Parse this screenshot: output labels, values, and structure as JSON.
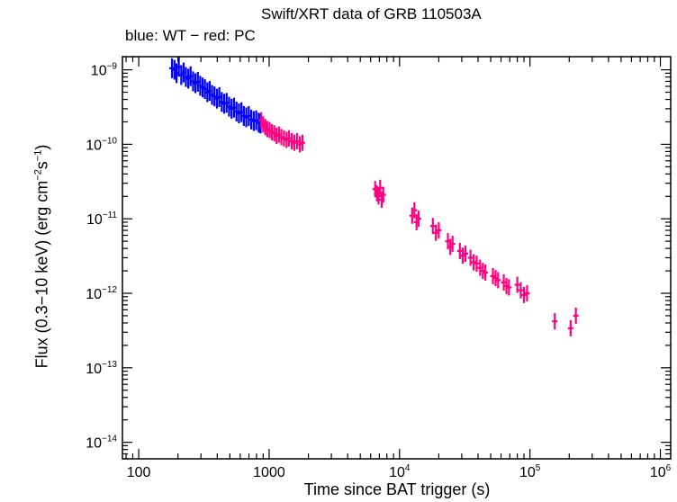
{
  "chart_data": {
    "type": "scatter",
    "title": "Swift/XRT data of GRB 110503A",
    "subtitle": "blue: WT − red: PC",
    "xlabel": "Time since BAT trigger (s)",
    "ylabel": {
      "prefix": "Flux (0.3−10 keV) (erg cm",
      "sup1": "−2",
      "mid": "s",
      "sup2": "−1",
      "suffix": ")"
    },
    "x_scale": "log",
    "y_scale": "log",
    "xlim": [
      75,
      1200000
    ],
    "ylim": [
      6e-15,
      1.5e-09
    ],
    "grid": false,
    "x_ticks": [
      {
        "value": 100,
        "base": "100",
        "exp": ""
      },
      {
        "value": 1000,
        "base": "1000",
        "exp": ""
      },
      {
        "value": 10000,
        "base": "10",
        "exp": "4"
      },
      {
        "value": 100000,
        "base": "10",
        "exp": "5"
      },
      {
        "value": 1000000,
        "base": "10",
        "exp": "6"
      }
    ],
    "y_ticks": [
      {
        "value": 1e-09,
        "base": "10",
        "exp": "−9"
      },
      {
        "value": 1e-10,
        "base": "10",
        "exp": "−10"
      },
      {
        "value": 1e-11,
        "base": "10",
        "exp": "−11"
      },
      {
        "value": 1e-12,
        "base": "10",
        "exp": "−12"
      },
      {
        "value": 1e-13,
        "base": "10",
        "exp": "−13"
      },
      {
        "value": 1e-14,
        "base": "10",
        "exp": "−14"
      }
    ],
    "colors": {
      "WT": "#0000ff",
      "PC": "#ff0080",
      "axes": "#000000"
    },
    "series": [
      {
        "mode": "WT",
        "points": [
          [
            180,
            1.05e-09
          ],
          [
            188,
            1e-09
          ],
          [
            195,
            9e-10
          ],
          [
            203,
            1.1e-09
          ],
          [
            212,
            8.5e-10
          ],
          [
            221,
            9.2e-10
          ],
          [
            230,
            8e-10
          ],
          [
            240,
            7.6e-10
          ],
          [
            250,
            8.2e-10
          ],
          [
            261,
            7e-10
          ],
          [
            272,
            6.6e-10
          ],
          [
            284,
            6.9e-10
          ],
          [
            296,
            6.1e-10
          ],
          [
            309,
            5.8e-10
          ],
          [
            322,
            5.5e-10
          ],
          [
            336,
            5e-10
          ],
          [
            350,
            5.2e-10
          ],
          [
            365,
            4.6e-10
          ],
          [
            381,
            4.4e-10
          ],
          [
            398,
            4.1e-10
          ],
          [
            415,
            4.3e-10
          ],
          [
            433,
            3.7e-10
          ],
          [
            452,
            3.5e-10
          ],
          [
            472,
            3.6e-10
          ],
          [
            493,
            3.2e-10
          ],
          [
            515,
            3e-10
          ],
          [
            538,
            3.1e-10
          ],
          [
            562,
            2.75e-10
          ],
          [
            587,
            2.6e-10
          ],
          [
            613,
            2.7e-10
          ],
          [
            640,
            2.4e-10
          ],
          [
            668,
            2.3e-10
          ],
          [
            698,
            2.4e-10
          ],
          [
            729,
            2.15e-10
          ],
          [
            762,
            2.05e-10
          ],
          [
            796,
            2.1e-10
          ],
          [
            832,
            1.95e-10
          ],
          [
            860,
            1.9e-10
          ]
        ]
      },
      {
        "mode": "PC",
        "points": [
          [
            870,
            2.1e-10
          ],
          [
            900,
            1.85e-10
          ],
          [
            935,
            1.7e-10
          ],
          [
            970,
            1.6e-10
          ],
          [
            1010,
            1.55e-10
          ],
          [
            1050,
            1.45e-10
          ],
          [
            1095,
            1.4e-10
          ],
          [
            1140,
            1.3e-10
          ],
          [
            1190,
            1.35e-10
          ],
          [
            1240,
            1.25e-10
          ],
          [
            1300,
            1.2e-10
          ],
          [
            1360,
            1.15e-10
          ],
          [
            1420,
            1.2e-10
          ],
          [
            1490,
            1.1e-10
          ],
          [
            1560,
            1.05e-10
          ],
          [
            1640,
            1.1e-10
          ],
          [
            1720,
            1e-10
          ],
          [
            1800,
            1.05e-10
          ],
          [
            6500,
            2.5e-11
          ],
          [
            6700,
            2.2e-11
          ],
          [
            6900,
            2e-11
          ],
          [
            7100,
            2.6e-11
          ],
          [
            7300,
            1.8e-11
          ],
          [
            7500,
            2.1e-11
          ],
          [
            12500,
            1.1e-11
          ],
          [
            13000,
            1.3e-11
          ],
          [
            13500,
            9e-12
          ],
          [
            14000,
            1e-11
          ],
          [
            18000,
            8e-12
          ],
          [
            19000,
            6.5e-12
          ],
          [
            20000,
            7e-12
          ],
          [
            23500,
            5e-12
          ],
          [
            24500,
            4.2e-12
          ],
          [
            25500,
            4.6e-12
          ],
          [
            29000,
            3.7e-12
          ],
          [
            30500,
            3.2e-12
          ],
          [
            32000,
            3.4e-12
          ],
          [
            35000,
            3e-12
          ],
          [
            37000,
            2.6e-12
          ],
          [
            39000,
            2.5e-12
          ],
          [
            41500,
            2.2e-12
          ],
          [
            43500,
            2e-12
          ],
          [
            45500,
            1.9e-12
          ],
          [
            52000,
            1.7e-12
          ],
          [
            54500,
            1.6e-12
          ],
          [
            57000,
            1.5e-12
          ],
          [
            63000,
            1.4e-12
          ],
          [
            66000,
            1.25e-12
          ],
          [
            69000,
            1.2e-12
          ],
          [
            80000,
            1.3e-12
          ],
          [
            85000,
            1.1e-12
          ],
          [
            90000,
            9.5e-13
          ],
          [
            95000,
            1e-12
          ],
          [
            155000,
            4.2e-13
          ],
          [
            205000,
            3.4e-13
          ],
          [
            225000,
            5e-13
          ]
        ]
      }
    ]
  }
}
